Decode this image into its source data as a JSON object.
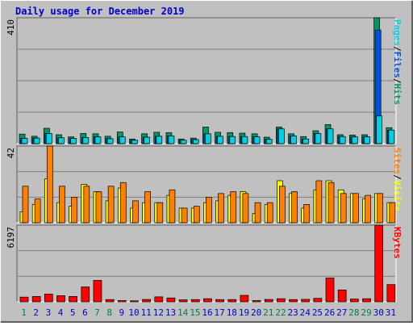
{
  "title": "Daily usage for December 2019",
  "colors": {
    "background": "#c0c0c0",
    "pages": "#00d0e0",
    "files": "#0050e0",
    "hits": "#009860",
    "visits": "#ff8000",
    "sites": "#ffff00",
    "kbytes": "#ff0000",
    "weekday_label": "#0000cc",
    "weekend_label": "#008040"
  },
  "chart_data": [
    {
      "type": "bar",
      "panel": "hits-files-pages",
      "ymax_label": "410",
      "ylim": [
        0,
        410
      ],
      "categories": [
        "1",
        "2",
        "3",
        "4",
        "5",
        "6",
        "7",
        "8",
        "9",
        "10",
        "11",
        "12",
        "13",
        "14",
        "15",
        "16",
        "17",
        "18",
        "19",
        "20",
        "21",
        "22",
        "23",
        "24",
        "25",
        "26",
        "27",
        "28",
        "29",
        "30",
        "31"
      ],
      "legend": [
        {
          "label": "Pages",
          "color": "#00d0e0"
        },
        {
          "label": "/",
          "color": "#000000"
        },
        {
          "label": "Files",
          "color": "#0050e0"
        },
        {
          "label": "/",
          "color": "#000000"
        },
        {
          "label": "Hits",
          "color": "#009860"
        }
      ],
      "series": [
        {
          "name": "Hits",
          "color": "#009860",
          "values": [
            31,
            24,
            50,
            29,
            22,
            33,
            32,
            24,
            38,
            15,
            32,
            37,
            36,
            15,
            18,
            54,
            37,
            36,
            34,
            32,
            21,
            54,
            32,
            23,
            42,
            62,
            29,
            28,
            29,
            410,
            52
          ]
        },
        {
          "name": "Files",
          "color": "#0050e0",
          "values": [
            17,
            18,
            33,
            19,
            17,
            20,
            22,
            16,
            22,
            11,
            21,
            24,
            25,
            11,
            13,
            32,
            24,
            23,
            23,
            22,
            14,
            48,
            25,
            15,
            33,
            48,
            23,
            22,
            22,
            370,
            44
          ]
        },
        {
          "name": "Pages",
          "color": "#00d0e0",
          "values": [
            17,
            18,
            33,
            19,
            17,
            20,
            22,
            16,
            22,
            11,
            21,
            24,
            25,
            11,
            13,
            32,
            24,
            23,
            23,
            22,
            14,
            48,
            25,
            15,
            33,
            48,
            23,
            22,
            22,
            90,
            44
          ]
        }
      ]
    },
    {
      "type": "bar",
      "panel": "visits-sites",
      "ymax_label": "42",
      "ylim": [
        0,
        42
      ],
      "categories": [
        "1",
        "2",
        "3",
        "4",
        "5",
        "6",
        "7",
        "8",
        "9",
        "10",
        "11",
        "12",
        "13",
        "14",
        "15",
        "16",
        "17",
        "18",
        "19",
        "20",
        "21",
        "22",
        "23",
        "24",
        "25",
        "26",
        "27",
        "28",
        "29",
        "30",
        "31"
      ],
      "legend": [
        {
          "label": "Sites",
          "color": "#ff8000"
        },
        {
          "label": "/",
          "color": "#000000"
        },
        {
          "label": "Visits",
          "color": "#ffff00"
        }
      ],
      "series": [
        {
          "name": "Sites",
          "color": "#ffff00",
          "values": [
            6,
            10,
            24,
            11,
            9,
            21,
            17,
            12,
            19,
            8,
            11,
            11,
            15,
            8,
            8,
            11,
            12,
            15,
            17,
            5,
            10,
            23,
            16,
            8,
            18,
            23,
            18,
            16,
            13,
            16,
            11
          ]
        },
        {
          "name": "Visits",
          "color": "#ff8000",
          "values": [
            20,
            13,
            42,
            20,
            14,
            20,
            17,
            20,
            22,
            12,
            17,
            11,
            18,
            8,
            9,
            14,
            16,
            17,
            16,
            11,
            11,
            20,
            17,
            10,
            23,
            22,
            16,
            16,
            15,
            16,
            11
          ]
        }
      ]
    },
    {
      "type": "bar",
      "panel": "kbytes",
      "ymax_label": "6197",
      "ylim": [
        0,
        6197
      ],
      "categories": [
        "1",
        "2",
        "3",
        "4",
        "5",
        "6",
        "7",
        "8",
        "9",
        "10",
        "11",
        "12",
        "13",
        "14",
        "15",
        "16",
        "17",
        "18",
        "19",
        "20",
        "21",
        "22",
        "23",
        "24",
        "25",
        "26",
        "27",
        "28",
        "29",
        "30",
        "31"
      ],
      "legend": [
        {
          "label": "KBytes",
          "color": "#ff0000"
        }
      ],
      "series": [
        {
          "name": "KBytes",
          "color": "#ff0000",
          "values": [
            380,
            430,
            620,
            500,
            430,
            1200,
            1730,
            180,
            100,
            80,
            190,
            400,
            310,
            160,
            180,
            250,
            180,
            180,
            520,
            100,
            190,
            250,
            180,
            200,
            280,
            1920,
            960,
            220,
            250,
            6197,
            1390
          ]
        }
      ]
    }
  ]
}
